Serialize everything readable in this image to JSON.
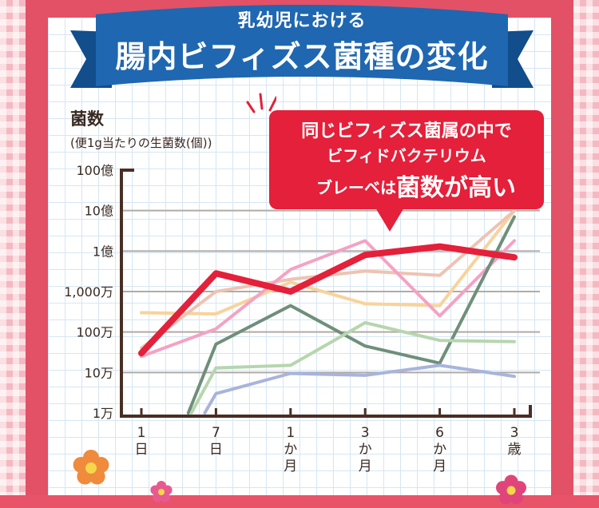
{
  "header": {
    "title_line1": "乳幼児における",
    "title_line2": "腸内ビフィズス菌種の変化"
  },
  "callout": {
    "line1": "同じビフィズス菌属の中で",
    "line2": "ビフィドバクテリウム",
    "line3_pre": "ブレーベは",
    "line3_emph": "菌数が高い"
  },
  "colors": {
    "brand_red": "#e4203a",
    "ribbon_blue": "#1f67b1",
    "frame_pink": "#e25166"
  },
  "chart_data": {
    "type": "line",
    "ylabel": "菌数",
    "ylabel_sub": "(便1g当たりの生菌数(個))",
    "y_scale": "log",
    "ylim": [
      10000,
      10000000000
    ],
    "y_ticks": [
      {
        "value": 10000000000,
        "label": "100億"
      },
      {
        "value": 1000000000,
        "label": "10億"
      },
      {
        "value": 100000000,
        "label": "1億"
      },
      {
        "value": 10000000,
        "label": "1,000万"
      },
      {
        "value": 1000000,
        "label": "100万"
      },
      {
        "value": 100000,
        "label": "10万"
      },
      {
        "value": 10000,
        "label": "1万"
      }
    ],
    "categories": [
      {
        "label": "1日",
        "chars": [
          "1",
          "日"
        ]
      },
      {
        "label": "7日",
        "chars": [
          "7",
          "日"
        ]
      },
      {
        "label": "1か月",
        "chars": [
          "1",
          "か",
          "月"
        ]
      },
      {
        "label": "3か月",
        "chars": [
          "3",
          "か",
          "月"
        ]
      },
      {
        "label": "6か月",
        "chars": [
          "6",
          "か",
          "月"
        ]
      },
      {
        "label": "3歳",
        "chars": [
          "3",
          "歳"
        ]
      }
    ],
    "series": [
      {
        "color": "#f7d39c",
        "width": 4,
        "points": [
          [
            0,
            3000000
          ],
          [
            1,
            2800000
          ],
          [
            2,
            17000000
          ],
          [
            3,
            5000000
          ],
          [
            4,
            4500000
          ],
          [
            5,
            1000000000
          ]
        ]
      },
      {
        "color": "#eec3b3",
        "width": 4,
        "points": [
          [
            0,
            400000
          ],
          [
            1,
            10000000
          ],
          [
            2,
            20000000
          ],
          [
            3,
            32000000
          ],
          [
            4,
            25000000
          ],
          [
            5,
            1000000000
          ]
        ]
      },
      {
        "color": "#f4a2c4",
        "width": 4,
        "points": [
          [
            0,
            250000
          ],
          [
            1,
            1200000
          ],
          [
            2,
            35000000
          ],
          [
            3,
            180000000
          ],
          [
            4,
            2500000
          ],
          [
            5,
            180000000
          ]
        ]
      },
      {
        "color": "#6f8f7a",
        "width": 4,
        "points": [
          [
            0.63,
            10000
          ],
          [
            1,
            500000
          ],
          [
            2,
            4500000
          ],
          [
            3,
            450000
          ],
          [
            4,
            170000
          ],
          [
            5,
            700000000
          ]
        ]
      },
      {
        "color": "#b6d6ae",
        "width": 4,
        "points": [
          [
            0.67,
            10000
          ],
          [
            1,
            130000
          ],
          [
            2,
            150000
          ],
          [
            3,
            1700000
          ],
          [
            4,
            620000
          ],
          [
            5,
            580000
          ]
        ]
      },
      {
        "color": "#a9b4dc",
        "width": 4,
        "points": [
          [
            0.85,
            10000
          ],
          [
            1,
            30000
          ],
          [
            2,
            95000
          ],
          [
            3,
            85000
          ],
          [
            4,
            150000
          ],
          [
            5,
            80000
          ]
        ]
      },
      {
        "color": "#e4203a",
        "width": 8,
        "points": [
          [
            0,
            300000
          ],
          [
            1,
            28000000
          ],
          [
            2,
            10000000
          ],
          [
            3,
            80000000
          ],
          [
            4,
            130000000
          ],
          [
            5,
            70000000
          ]
        ]
      }
    ]
  }
}
